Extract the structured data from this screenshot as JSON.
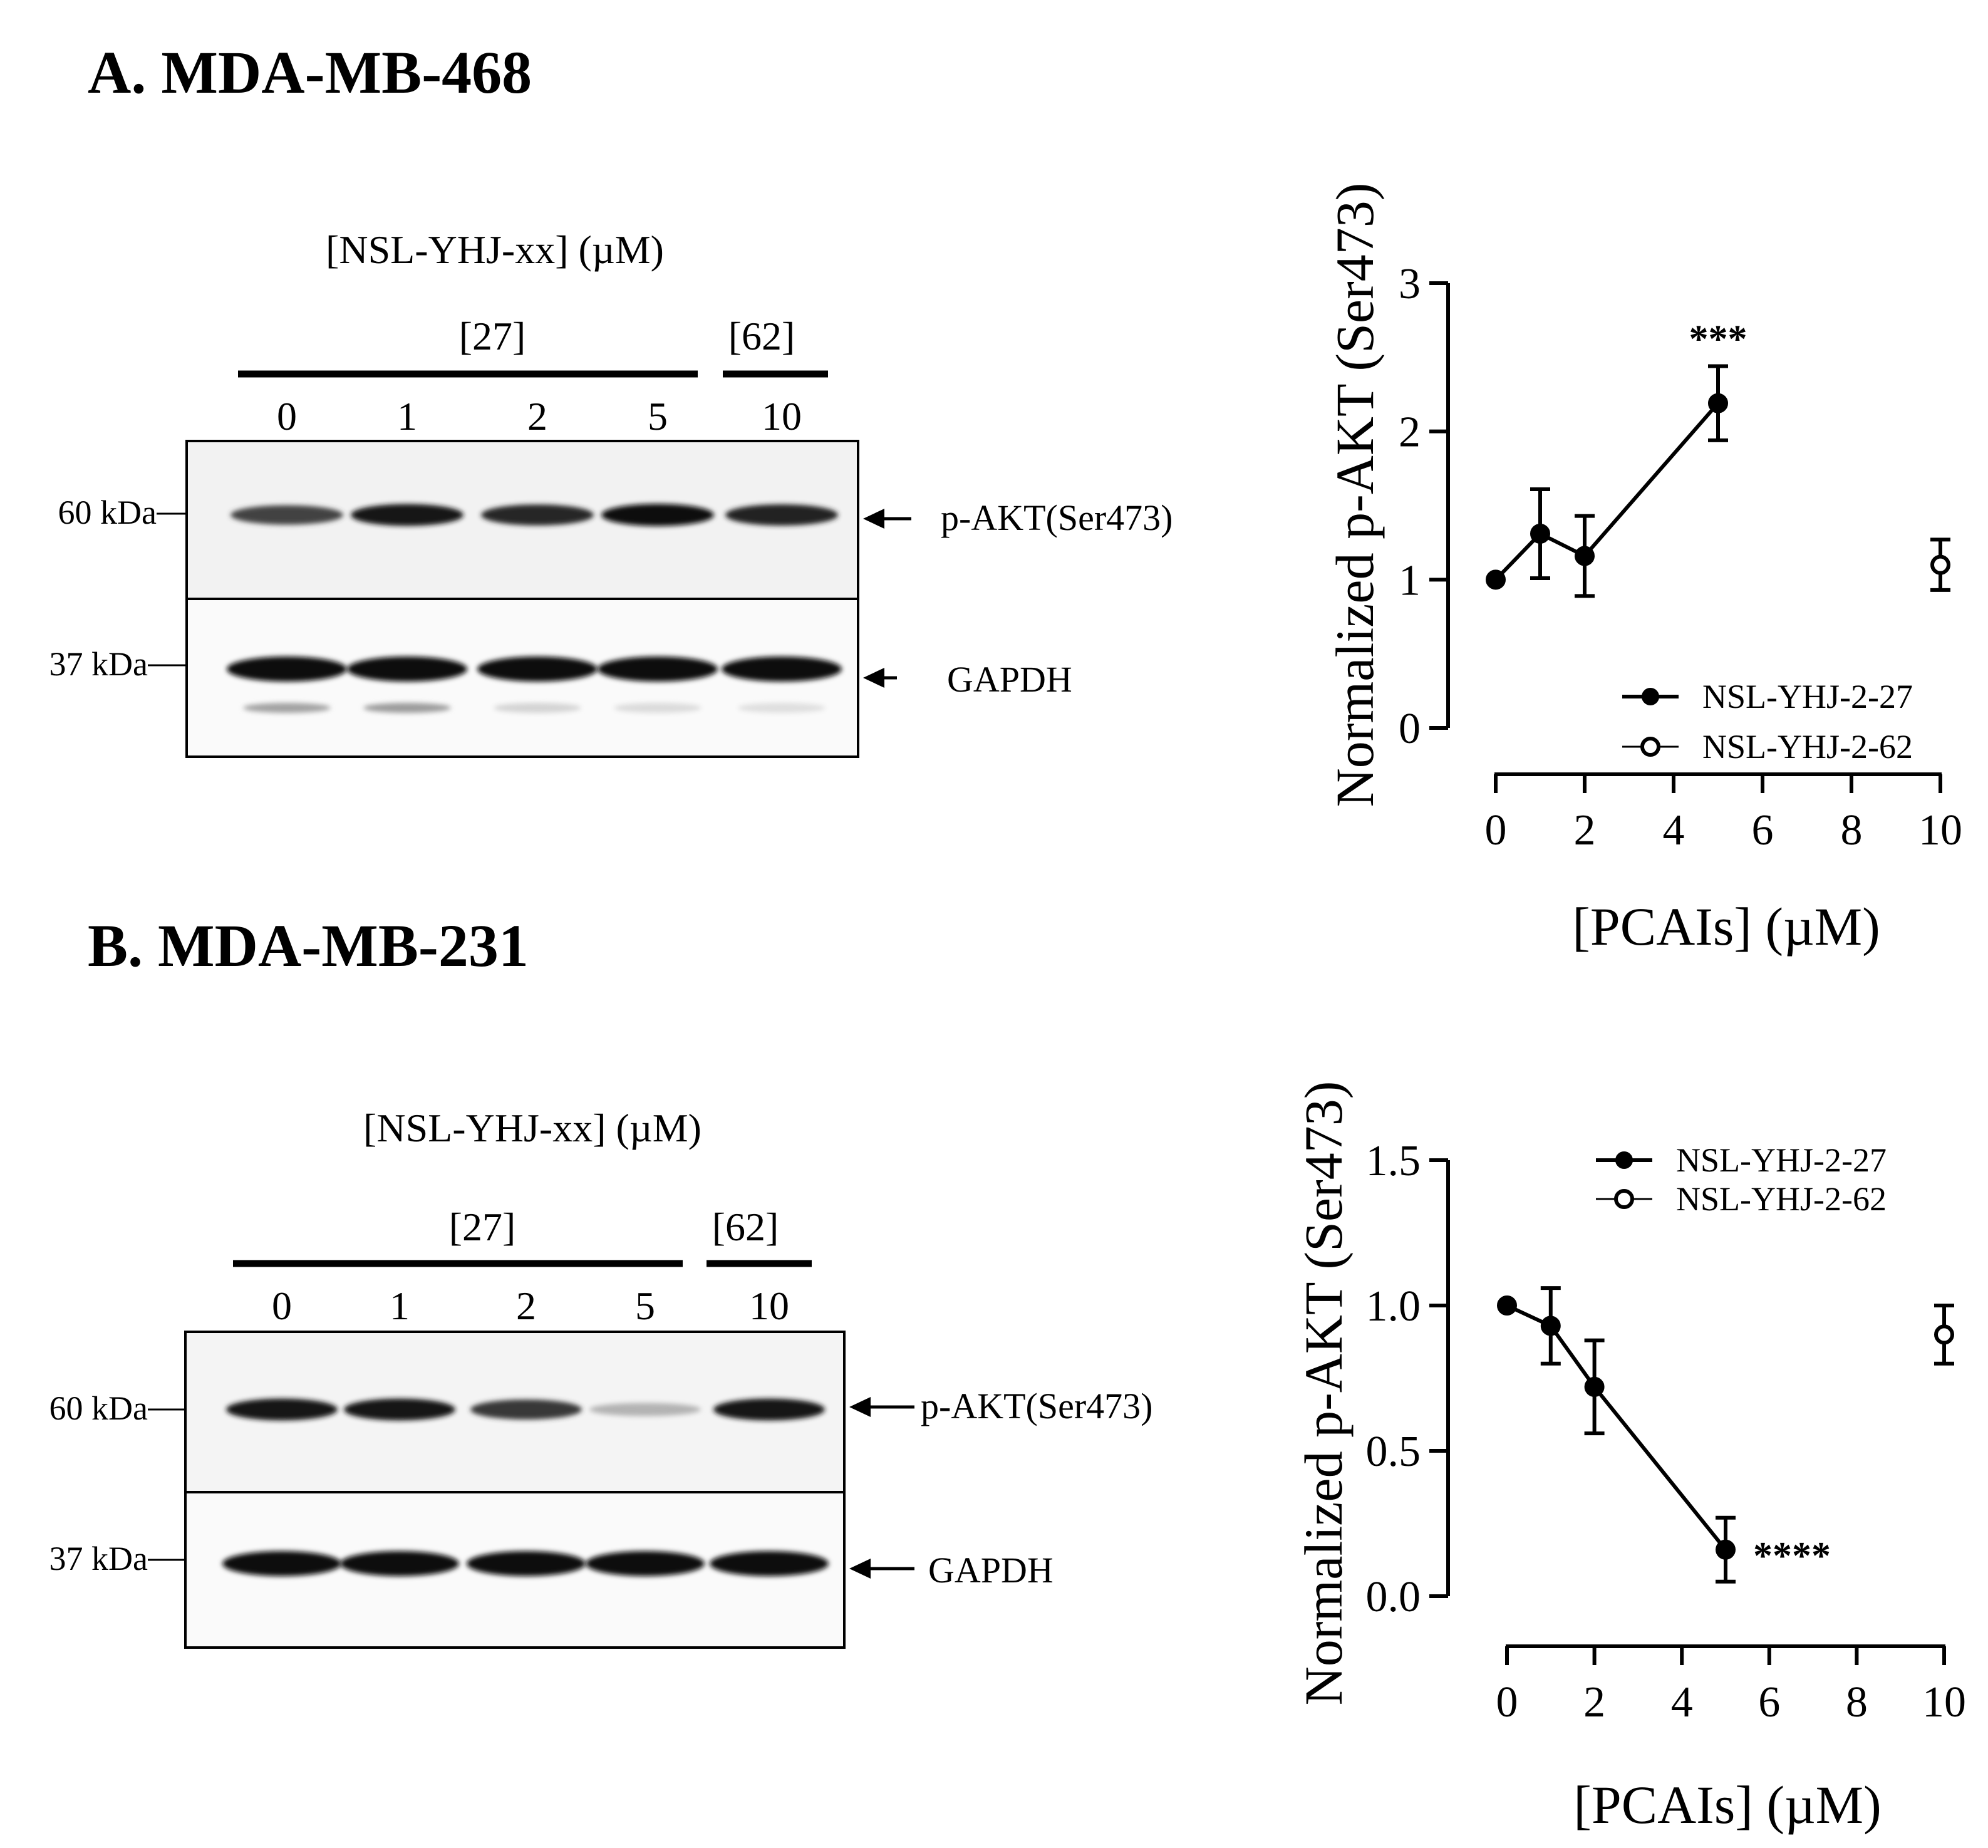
{
  "panels": [
    {
      "title": "A. MDA-MB-468",
      "blot": {
        "header": "[NSL-YHJ-xx]  (µM)",
        "group_labels": [
          "[27]",
          "[62]"
        ],
        "lanes": [
          "0",
          "1",
          "2",
          "5",
          "10"
        ],
        "markers": [
          "60 kDa",
          "37 kDa"
        ],
        "targets": [
          "p-AKT(Ser473)",
          "GAPDH"
        ],
        "pakt_intensity": [
          0.75,
          0.95,
          0.88,
          0.97,
          0.9
        ],
        "gapdh_intensity": [
          1.0,
          1.0,
          1.0,
          1.0,
          1.0
        ],
        "lower_band_intensity": [
          0.55,
          0.6,
          0.2,
          0.15,
          0.12
        ]
      }
    },
    {
      "title": "B. MDA-MB-231",
      "blot": {
        "header": "[NSL-YHJ-xx]  (µM)",
        "group_labels": [
          "[27]",
          "[62]"
        ],
        "lanes": [
          "0",
          "1",
          "2",
          "5",
          "10"
        ],
        "markers": [
          "60 kDa",
          "37 kDa"
        ],
        "targets": [
          "p-AKT(Ser473)",
          "GAPDH"
        ],
        "pakt_intensity": [
          0.95,
          0.95,
          0.8,
          0.25,
          0.95
        ],
        "gapdh_intensity": [
          1.0,
          1.0,
          1.0,
          1.0,
          1.0
        ],
        "lower_band_intensity": [
          0,
          0,
          0,
          0,
          0
        ]
      }
    }
  ],
  "chart_data": [
    {
      "type": "line",
      "xlabel": "[PCAIs] (µM)",
      "ylabel": "Normalized p-AKT (Ser473)",
      "ylim": [
        0,
        3
      ],
      "yticks": [
        "0",
        "1",
        "2",
        "3"
      ],
      "xlim": [
        0,
        10
      ],
      "xticks": [
        "0",
        "2",
        "4",
        "6",
        "8",
        "10"
      ],
      "legend_position": "bottom-right",
      "series": [
        {
          "name": "NSL-YHJ-2-27",
          "marker": "filled-circle",
          "x": [
            0,
            1,
            2,
            5
          ],
          "y": [
            1.0,
            1.31,
            1.16,
            2.19
          ],
          "err": [
            0,
            0.3,
            0.27,
            0.25
          ]
        },
        {
          "name": "NSL-YHJ-2-62",
          "marker": "open-circle",
          "x": [
            10
          ],
          "y": [
            1.1
          ],
          "err": [
            0.17
          ]
        }
      ],
      "annotations": [
        {
          "text": "***",
          "x": 5,
          "y": 2.19
        }
      ]
    },
    {
      "type": "line",
      "xlabel": "[PCAIs] (µM)",
      "ylabel": "Normalized p-AKT (Ser473)",
      "ylim": [
        0,
        1.5
      ],
      "yticks": [
        "0.0",
        "0.5",
        "1.0",
        "1.5"
      ],
      "xlim": [
        0,
        10
      ],
      "xticks": [
        "0",
        "2",
        "4",
        "6",
        "8",
        "10"
      ],
      "legend_position": "top-right",
      "series": [
        {
          "name": "NSL-YHJ-2-27",
          "marker": "filled-circle",
          "x": [
            0,
            1,
            2,
            5
          ],
          "y": [
            1.0,
            0.93,
            0.72,
            0.16
          ],
          "err": [
            0,
            0.13,
            0.16,
            0.11
          ]
        },
        {
          "name": "NSL-YHJ-2-62",
          "marker": "open-circle",
          "x": [
            10
          ],
          "y": [
            0.9
          ],
          "err": [
            0.1
          ]
        }
      ],
      "annotations": [
        {
          "text": "****",
          "x": 5,
          "y": 0.16
        }
      ]
    }
  ]
}
